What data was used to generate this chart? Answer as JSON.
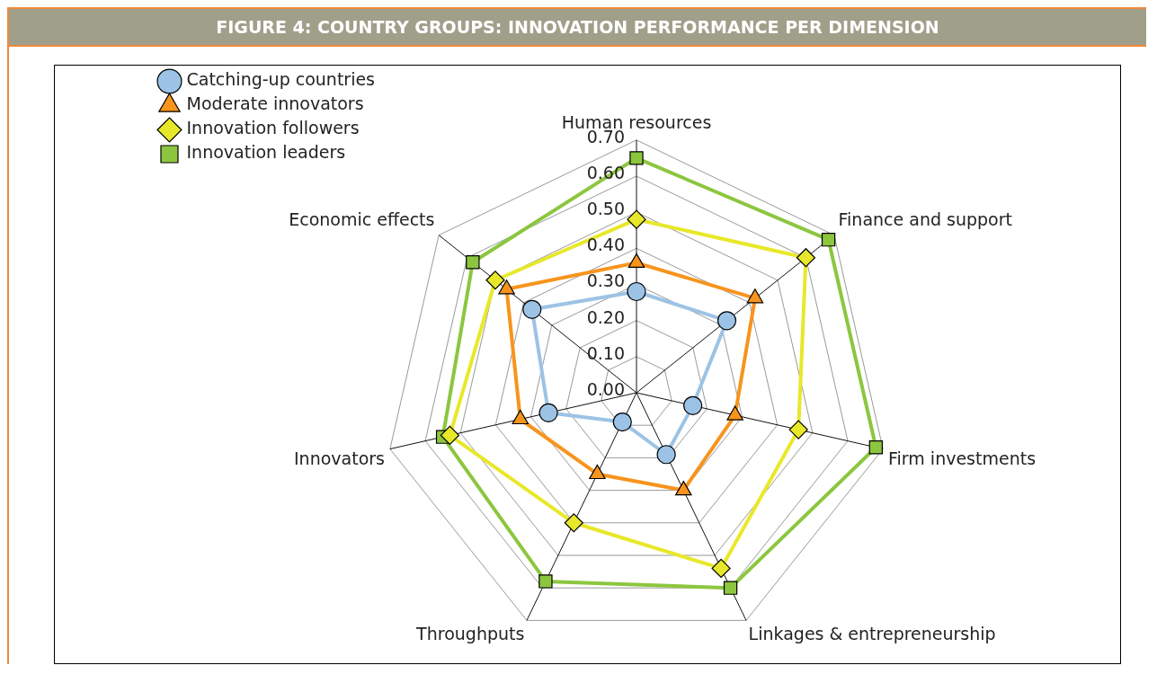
{
  "chart_data": {
    "type": "radar",
    "title": "FIGURE 4: COUNTRY GROUPS: INNOVATION PERFORMANCE PER DIMENSION",
    "categories": [
      "Human resources",
      "Finance and support",
      "Firm investments",
      "Linkages & entrepreneurship",
      "Throughputs",
      "Innovators",
      "Economic effects"
    ],
    "ylim": [
      0,
      0.7
    ],
    "yticks": [
      {
        "value": 0,
        "label": "0.00"
      },
      {
        "value": 0.1,
        "label": "0.10"
      },
      {
        "value": 0.2,
        "label": "0.20"
      },
      {
        "value": 0.3,
        "label": "0.30"
      },
      {
        "value": 0.4,
        "label": "0.40"
      },
      {
        "value": 0.5,
        "label": "0.50"
      },
      {
        "value": 0.6,
        "label": "0.60"
      },
      {
        "value": 0.7,
        "label": "0.70"
      }
    ],
    "grid": true,
    "legend": "top left",
    "series": [
      {
        "name": "Catching-up countries",
        "color": "#9cc3e5",
        "marker": "circle",
        "values": [
          0.28,
          0.32,
          0.16,
          0.19,
          0.09,
          0.25,
          0.37
        ]
      },
      {
        "name": "Moderate innovators",
        "color": "#f7941d",
        "marker": "triangle",
        "values": [
          0.36,
          0.42,
          0.28,
          0.3,
          0.25,
          0.33,
          0.46
        ]
      },
      {
        "name": "Innovation followers",
        "color": "#e8e82a",
        "marker": "diamond",
        "values": [
          0.48,
          0.6,
          0.46,
          0.54,
          0.4,
          0.53,
          0.5
        ]
      },
      {
        "name": "Innovation leaders",
        "color": "#8cc63f",
        "marker": "square",
        "values": [
          0.65,
          0.68,
          0.68,
          0.6,
          0.58,
          0.55,
          0.58
        ]
      }
    ]
  }
}
